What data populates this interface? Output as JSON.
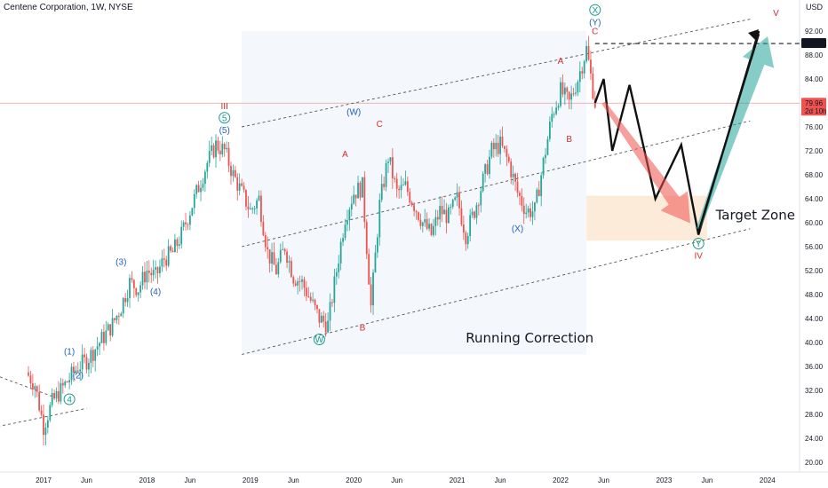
{
  "header": {
    "title": "Centene Corporation, 1W, NYSE",
    "currency": "USD"
  },
  "chart_data": {
    "type": "candlestick",
    "title": "Centene Corporation, 1W, NYSE",
    "x_ticks": [
      "2017",
      "Jun",
      "2018",
      "Jun",
      "2019",
      "Jun",
      "2020",
      "Jun",
      "2021",
      "Jun",
      "2022",
      "Jun",
      "2023",
      "Jun",
      "2024"
    ],
    "y_ticks": [
      20,
      24,
      28,
      32,
      36,
      40,
      44,
      48,
      52,
      56,
      60,
      64,
      68,
      72,
      76,
      80,
      84,
      88,
      92
    ],
    "ylim": [
      19,
      96
    ],
    "price_tags": [
      {
        "value": 89.92,
        "label": "89.92",
        "style": "dark"
      },
      {
        "value": 79.96,
        "label": "79.96",
        "sublabel": "2d 10h",
        "style": "red"
      }
    ],
    "price_path": [
      [
        "2016-11",
        35
      ],
      [
        "2016-12",
        33
      ],
      [
        "2017-01",
        26
      ],
      [
        "2017-02",
        30
      ],
      [
        "2017-03",
        32
      ],
      [
        "2017-04",
        34
      ],
      [
        "2017-05",
        36
      ],
      [
        "2017-06",
        37
      ],
      [
        "2017-07",
        39
      ],
      [
        "2017-08",
        41
      ],
      [
        "2017-09",
        43
      ],
      [
        "2017-10",
        46
      ],
      [
        "2017-11",
        50
      ],
      [
        "2017-12",
        49
      ],
      [
        "2018-01",
        52
      ],
      [
        "2018-02",
        51
      ],
      [
        "2018-03",
        54
      ],
      [
        "2018-04",
        55
      ],
      [
        "2018-05",
        58
      ],
      [
        "2018-06",
        62
      ],
      [
        "2018-07",
        66
      ],
      [
        "2018-08",
        70
      ],
      [
        "2018-09",
        73
      ],
      [
        "2018-10",
        72
      ],
      [
        "2018-11",
        68
      ],
      [
        "2018-12",
        65
      ],
      [
        "2019-01",
        62
      ],
      [
        "2019-02",
        64
      ],
      [
        "2019-03",
        55
      ],
      [
        "2019-04",
        52
      ],
      [
        "2019-05",
        56
      ],
      [
        "2019-06",
        51
      ],
      [
        "2019-07",
        50
      ],
      [
        "2019-08",
        47
      ],
      [
        "2019-09",
        44
      ],
      [
        "2019-10",
        43
      ],
      [
        "2019-11",
        52
      ],
      [
        "2019-12",
        61
      ],
      [
        "2020-01",
        65
      ],
      [
        "2020-02",
        66
      ],
      [
        "2020-03",
        46
      ],
      [
        "2020-04",
        63
      ],
      [
        "2020-05",
        71
      ],
      [
        "2020-06",
        65
      ],
      [
        "2020-07",
        66
      ],
      [
        "2020-08",
        63
      ],
      [
        "2020-09",
        60
      ],
      [
        "2020-10",
        58
      ],
      [
        "2020-11",
        62
      ],
      [
        "2020-12",
        61
      ],
      [
        "2021-01",
        64
      ],
      [
        "2021-02",
        58
      ],
      [
        "2021-03",
        62
      ],
      [
        "2021-04",
        67
      ],
      [
        "2021-05",
        72
      ],
      [
        "2021-06",
        73
      ],
      [
        "2021-07",
        70
      ],
      [
        "2021-08",
        65
      ],
      [
        "2021-09",
        62
      ],
      [
        "2021-10",
        62
      ],
      [
        "2021-11",
        70
      ],
      [
        "2021-12",
        78
      ],
      [
        "2022-01",
        82
      ],
      [
        "2022-02",
        80
      ],
      [
        "2022-03",
        84
      ],
      [
        "2022-04",
        89
      ],
      [
        "2022-05",
        80
      ]
    ],
    "forecast_path": [
      [
        "2022-05",
        80
      ],
      [
        "2022-06",
        84
      ],
      [
        "2022-07",
        72
      ],
      [
        "2022-09",
        83
      ],
      [
        "2022-12",
        64
      ],
      [
        "2023-03",
        73
      ],
      [
        "2023-05",
        58
      ],
      [
        "2023-12",
        92
      ]
    ],
    "channel_lines": [
      {
        "style": "dashed",
        "points": [
          [
            "2018-12",
            76
          ],
          [
            "2023-11",
            94
          ]
        ]
      },
      {
        "style": "dashed",
        "points": [
          [
            "2018-12",
            56
          ],
          [
            "2023-11",
            77
          ]
        ]
      },
      {
        "style": "dashed",
        "points": [
          [
            "2018-12",
            38
          ],
          [
            "2023-11",
            59
          ]
        ]
      },
      {
        "style": "dashed",
        "points": [
          [
            "2016-01",
            38
          ],
          [
            "2017-02",
            31
          ]
        ]
      },
      {
        "style": "dashed",
        "points": [
          [
            "2016-01",
            24
          ],
          [
            "2017-06",
            29
          ]
        ]
      }
    ],
    "horizontal_levels": [
      {
        "value": 89.92,
        "from": "2022-05",
        "style": "dashed-black"
      },
      {
        "value": 79.96,
        "style": "solid-red"
      }
    ],
    "target_zone": {
      "from": "2022-04",
      "to": "2023-06",
      "low": 57,
      "high": 64.5,
      "label": "Target Zone"
    },
    "annotations": [
      {
        "text": "Running Correction",
        "x": "2021-02",
        "y": 40,
        "style": "big"
      },
      {
        "text": "Target Zone",
        "x": "2023-07",
        "y": 60.5,
        "style": "big"
      },
      {
        "text": "III",
        "x": "2018-10",
        "y": 79,
        "color": "#d32f2f"
      },
      {
        "text": "5",
        "x": "2018-10",
        "y": 77,
        "color": "#1b9a8e",
        "circled": true
      },
      {
        "text": "(5)",
        "x": "2018-10",
        "y": 75,
        "color": "#1f5fbf"
      },
      {
        "text": "(3)",
        "x": "2017-10",
        "y": 53,
        "color": "#1f5fbf"
      },
      {
        "text": "(4)",
        "x": "2018-02",
        "y": 48,
        "color": "#1f5fbf"
      },
      {
        "text": "(1)",
        "x": "2017-04",
        "y": 38,
        "color": "#1f5fbf"
      },
      {
        "text": "(2)",
        "x": "2017-05",
        "y": 34,
        "color": "#1f5fbf"
      },
      {
        "text": "4",
        "x": "2017-04",
        "y": 30,
        "color": "#1b9a8e",
        "circled": true
      },
      {
        "text": "W",
        "x": "2019-09",
        "y": 40,
        "color": "#1b9a8e",
        "circled": true
      },
      {
        "text": "(W)",
        "x": "2020-01",
        "y": 78,
        "color": "#1f5fbf"
      },
      {
        "text": "A",
        "x": "2019-12",
        "y": 71,
        "color": "#d32f2f"
      },
      {
        "text": "B",
        "x": "2020-02",
        "y": 42,
        "color": "#d32f2f"
      },
      {
        "text": "C",
        "x": "2020-04",
        "y": 76,
        "color": "#d32f2f"
      },
      {
        "text": "(X)",
        "x": "2021-08",
        "y": 58.5,
        "color": "#1f5fbf"
      },
      {
        "text": "A",
        "x": "2022-01",
        "y": 86.5,
        "color": "#d32f2f"
      },
      {
        "text": "B",
        "x": "2022-02",
        "y": 73.5,
        "color": "#d32f2f"
      },
      {
        "text": "C",
        "x": "2022-05",
        "y": 91.5,
        "color": "#d32f2f"
      },
      {
        "text": "(Y)",
        "x": "2022-05",
        "y": 93,
        "color": "#1f5fbf"
      },
      {
        "text": "X",
        "x": "2022-05",
        "y": 95,
        "color": "#1b9a8e",
        "circled": true
      },
      {
        "text": "Y",
        "x": "2023-05",
        "y": 56,
        "color": "#1b9a8e",
        "circled": true
      },
      {
        "text": "IV",
        "x": "2023-05",
        "y": 54,
        "color": "#d32f2f"
      },
      {
        "text": "V",
        "x": "2024-02",
        "y": 94.5,
        "color": "#d32f2f"
      }
    ],
    "arrows": [
      {
        "color": "red",
        "from": [
          "2022-06",
          80
        ],
        "to": [
          "2023-04",
          60
        ]
      },
      {
        "color": "green",
        "from": [
          "2023-05",
          59
        ],
        "to": [
          "2024-01",
          91
        ]
      }
    ],
    "colors": {
      "up": "#26a69a",
      "down": "#ef5350",
      "accent_red": "#d32f2f",
      "wave_blue": "#1f5fbf",
      "wave_teal": "#1b9a8e",
      "zone": "#fde8d3"
    }
  }
}
